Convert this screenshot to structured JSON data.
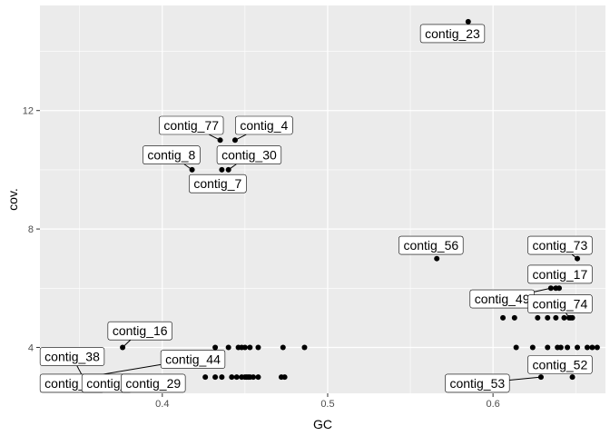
{
  "chart_data": {
    "type": "scatter",
    "xlabel": "GC",
    "ylabel": "cov.",
    "xlim": [
      0.326,
      0.668
    ],
    "ylim": [
      2.45,
      15.55
    ],
    "x_ticks": [
      0.4,
      0.5,
      0.6
    ],
    "x_tick_labels": [
      "0.4",
      "0.5",
      "0.6"
    ],
    "y_ticks": [
      4,
      8,
      12
    ],
    "y_tick_labels": [
      "4",
      "8",
      "12"
    ],
    "grid": true,
    "colors": {
      "panel": "#ebebeb",
      "grid": "#ffffff",
      "point": "#000000",
      "label_fill": "#ffffff",
      "label_border": "#000000"
    },
    "points": [
      {
        "x": 0.585,
        "y": 15
      },
      {
        "x": 0.435,
        "y": 11
      },
      {
        "x": 0.444,
        "y": 11
      },
      {
        "x": 0.418,
        "y": 10
      },
      {
        "x": 0.436,
        "y": 10
      },
      {
        "x": 0.44,
        "y": 10
      },
      {
        "x": 0.566,
        "y": 7
      },
      {
        "x": 0.651,
        "y": 7
      },
      {
        "x": 0.635,
        "y": 6
      },
      {
        "x": 0.638,
        "y": 6
      },
      {
        "x": 0.64,
        "y": 6
      },
      {
        "x": 0.606,
        "y": 5
      },
      {
        "x": 0.613,
        "y": 5
      },
      {
        "x": 0.627,
        "y": 5
      },
      {
        "x": 0.633,
        "y": 5
      },
      {
        "x": 0.638,
        "y": 5
      },
      {
        "x": 0.643,
        "y": 5
      },
      {
        "x": 0.646,
        "y": 5
      },
      {
        "x": 0.647,
        "y": 5
      },
      {
        "x": 0.648,
        "y": 5
      },
      {
        "x": 0.614,
        "y": 4
      },
      {
        "x": 0.624,
        "y": 4
      },
      {
        "x": 0.633,
        "y": 4
      },
      {
        "x": 0.639,
        "y": 4
      },
      {
        "x": 0.641,
        "y": 4
      },
      {
        "x": 0.645,
        "y": 4
      },
      {
        "x": 0.651,
        "y": 4
      },
      {
        "x": 0.657,
        "y": 4
      },
      {
        "x": 0.66,
        "y": 4
      },
      {
        "x": 0.663,
        "y": 4
      },
      {
        "x": 0.629,
        "y": 3
      },
      {
        "x": 0.648,
        "y": 3
      },
      {
        "x": 0.376,
        "y": 4
      },
      {
        "x": 0.432,
        "y": 4
      },
      {
        "x": 0.44,
        "y": 4
      },
      {
        "x": 0.446,
        "y": 4
      },
      {
        "x": 0.448,
        "y": 4
      },
      {
        "x": 0.45,
        "y": 4
      },
      {
        "x": 0.453,
        "y": 4
      },
      {
        "x": 0.458,
        "y": 4
      },
      {
        "x": 0.473,
        "y": 4
      },
      {
        "x": 0.486,
        "y": 4
      },
      {
        "x": 0.426,
        "y": 3
      },
      {
        "x": 0.432,
        "y": 3
      },
      {
        "x": 0.436,
        "y": 3
      },
      {
        "x": 0.442,
        "y": 3
      },
      {
        "x": 0.445,
        "y": 3
      },
      {
        "x": 0.448,
        "y": 3
      },
      {
        "x": 0.45,
        "y": 3
      },
      {
        "x": 0.451,
        "y": 3
      },
      {
        "x": 0.452,
        "y": 3
      },
      {
        "x": 0.453,
        "y": 3
      },
      {
        "x": 0.455,
        "y": 3
      },
      {
        "x": 0.458,
        "y": 3
      },
      {
        "x": 0.472,
        "y": 3
      },
      {
        "x": 0.474,
        "y": 3
      }
    ],
    "labels": [
      {
        "text": "contig_23",
        "x": 0.585,
        "y": 15,
        "lx": 0.5755,
        "ly": 14.6
      },
      {
        "text": "contig_77",
        "x": 0.435,
        "y": 11,
        "lx": 0.4175,
        "ly": 11.5
      },
      {
        "text": "contig_4",
        "x": 0.444,
        "y": 11,
        "lx": 0.4615,
        "ly": 11.5
      },
      {
        "text": "contig_8",
        "x": 0.418,
        "y": 10,
        "lx": 0.4055,
        "ly": 10.5
      },
      {
        "text": "contig_30",
        "x": 0.44,
        "y": 10,
        "lx": 0.4525,
        "ly": 10.5
      },
      {
        "text": "contig_7",
        "x": 0.436,
        "y": 10,
        "lx": 0.4335,
        "ly": 9.53
      },
      {
        "text": "contig_56",
        "x": 0.566,
        "y": 7,
        "lx": 0.5625,
        "ly": 7.45
      },
      {
        "text": "contig_73",
        "x": 0.651,
        "y": 7,
        "lx": 0.6405,
        "ly": 7.45
      },
      {
        "text": "contig_17",
        "x": 0.638,
        "y": 6,
        "lx": 0.6405,
        "ly": 6.47
      },
      {
        "text": "contig_49",
        "x": 0.635,
        "y": 6,
        "lx": 0.6055,
        "ly": 5.64
      },
      {
        "text": "contig_74",
        "x": 0.646,
        "y": 5,
        "lx": 0.6405,
        "ly": 5.47
      },
      {
        "text": "contig_16",
        "x": 0.376,
        "y": 4,
        "lx": 0.3865,
        "ly": 4.56
      },
      {
        "text": "contig_38",
        "x": 0.352,
        "y": 3,
        "lx": 0.3455,
        "ly": 3.69
      },
      {
        "text": "contig_44",
        "x": 0.354,
        "y": 3,
        "lx": 0.4185,
        "ly": 3.6
      },
      {
        "text": "contig_21",
        "x": 0.347,
        "y": 3,
        "lx": 0.3455,
        "ly": 2.79
      },
      {
        "text": "contig_",
        "x": 0.36,
        "y": 3,
        "lx": 0.3665,
        "ly": 2.79
      },
      {
        "text": "contig_29",
        "x": 0.384,
        "y": 3,
        "lx": 0.3945,
        "ly": 2.79
      },
      {
        "text": "contig_53",
        "x": 0.629,
        "y": 3,
        "lx": 0.5905,
        "ly": 2.79
      },
      {
        "text": "contig_52",
        "x": 0.648,
        "y": 3,
        "lx": 0.6405,
        "ly": 3.42
      }
    ]
  }
}
